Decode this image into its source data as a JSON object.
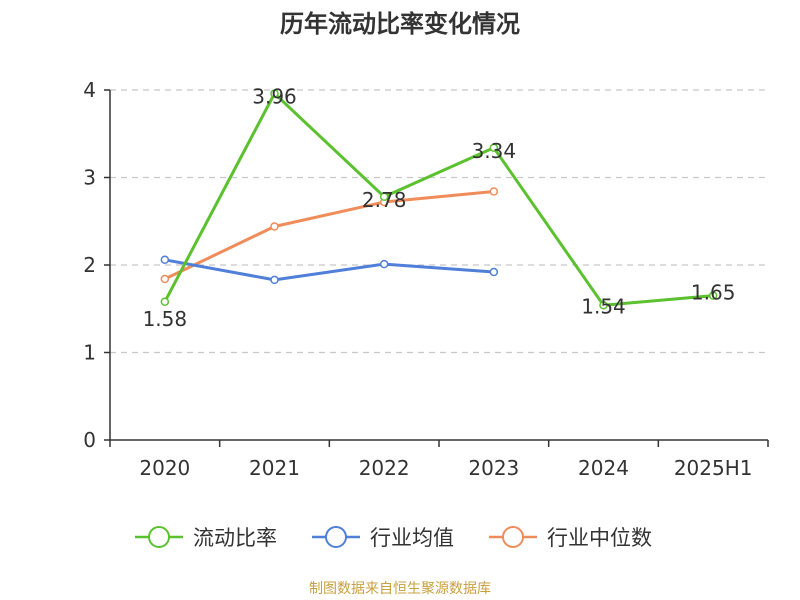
{
  "chart_data": {
    "type": "line",
    "title": "历年流动比率变化情况",
    "categories": [
      "2020",
      "2021",
      "2022",
      "2023",
      "2024",
      "2025H1"
    ],
    "ylim": [
      0,
      4
    ],
    "yticks": [
      "0",
      "1",
      "2",
      "3",
      "4"
    ],
    "grid": true,
    "legend_position": "bottom",
    "series": [
      {
        "name": "流动比率",
        "color": "#5bc12e",
        "values": [
          1.58,
          3.96,
          2.78,
          3.34,
          1.54,
          1.65
        ],
        "data_labels": [
          "1.58",
          "3.96",
          "2.78",
          "3.34",
          "1.54",
          "1.65"
        ]
      },
      {
        "name": "行业均值",
        "color": "#4f7fd8",
        "values": [
          2.06,
          1.83,
          2.01,
          1.92,
          null,
          null
        ]
      },
      {
        "name": "行业中位数",
        "color": "#f08c5a",
        "values": [
          1.84,
          2.44,
          2.72,
          2.84,
          null,
          null
        ]
      }
    ]
  },
  "footer": {
    "source": "制图数据来自恒生聚源数据库",
    "color": "#c8a040"
  }
}
